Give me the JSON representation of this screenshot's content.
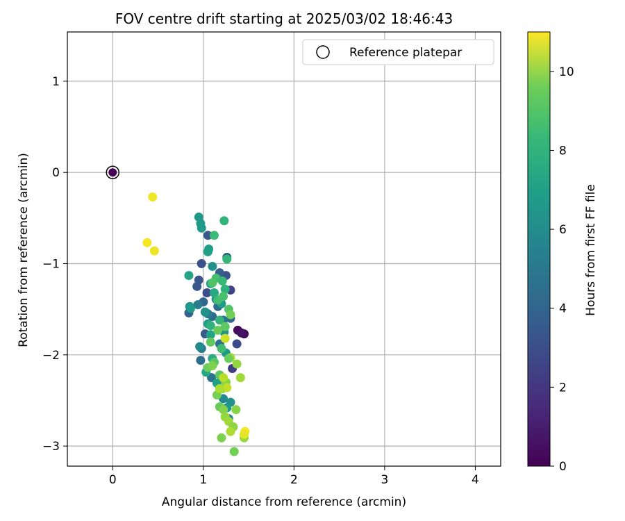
{
  "chart_data": {
    "type": "scatter",
    "title": "FOV centre drift starting at 2025/03/02 18:46:43",
    "xlabel": "Angular distance from reference (arcmin)",
    "ylabel": "Rotation from reference (arcmin)",
    "xlim": [
      -0.5,
      4.28
    ],
    "ylim": [
      -3.22,
      1.54
    ],
    "xticks": [
      0,
      1,
      2,
      3,
      4
    ],
    "yticks": [
      -3,
      -2,
      -1,
      0,
      1
    ],
    "xtick_labels": [
      "0",
      "1",
      "2",
      "3",
      "4"
    ],
    "ytick_labels": [
      "−3",
      "−2",
      "−1",
      "0",
      "1"
    ],
    "grid": true,
    "legend": {
      "position": "top-right",
      "entries": [
        "Reference platepar"
      ]
    },
    "colorbar": {
      "label": "Hours from first FF file",
      "colormap": "viridis",
      "range": [
        0,
        11
      ],
      "ticks": [
        0,
        2,
        4,
        6,
        8,
        10
      ],
      "tick_labels": [
        "0",
        "2",
        "4",
        "6",
        "8",
        "10"
      ]
    },
    "reference_point": {
      "x": 0,
      "y": 0,
      "hours": 0
    },
    "points": [
      {
        "x": 1.38,
        "y": -1.73,
        "h": 0.3
      },
      {
        "x": 1.45,
        "y": -1.77,
        "h": 0.2
      },
      {
        "x": 1.42,
        "y": -1.76,
        "h": 0.5
      },
      {
        "x": 1.32,
        "y": -2.15,
        "h": 2.0
      },
      {
        "x": 1.37,
        "y": -1.88,
        "h": 2.5
      },
      {
        "x": 1.3,
        "y": -1.29,
        "h": 2.2
      },
      {
        "x": 1.25,
        "y": -1.13,
        "h": 2.8
      },
      {
        "x": 1.05,
        "y": -0.69,
        "h": 3.0
      },
      {
        "x": 0.98,
        "y": -1.0,
        "h": 2.7
      },
      {
        "x": 0.93,
        "y": -1.25,
        "h": 3.0
      },
      {
        "x": 0.95,
        "y": -1.18,
        "h": 2.9
      },
      {
        "x": 1.18,
        "y": -1.1,
        "h": 3.3
      },
      {
        "x": 1.04,
        "y": -1.32,
        "h": 2.6
      },
      {
        "x": 1.26,
        "y": -0.93,
        "h": 3.2
      },
      {
        "x": 0.84,
        "y": -1.54,
        "h": 3.4
      },
      {
        "x": 1.0,
        "y": -1.42,
        "h": 3.6
      },
      {
        "x": 1.02,
        "y": -1.77,
        "h": 3.1
      },
      {
        "x": 1.1,
        "y": -1.58,
        "h": 3.8
      },
      {
        "x": 0.97,
        "y": -2.06,
        "h": 4.0
      },
      {
        "x": 1.09,
        "y": -2.25,
        "h": 4.2
      },
      {
        "x": 1.3,
        "y": -1.6,
        "h": 3.7
      },
      {
        "x": 1.22,
        "y": -1.62,
        "h": 4.3
      },
      {
        "x": 1.16,
        "y": -1.47,
        "h": 3.9
      },
      {
        "x": 0.94,
        "y": -1.45,
        "h": 4.5
      },
      {
        "x": 0.98,
        "y": -1.93,
        "h": 4.4
      },
      {
        "x": 1.05,
        "y": -1.55,
        "h": 4.6
      },
      {
        "x": 1.18,
        "y": -1.88,
        "h": 4.1
      },
      {
        "x": 0.95,
        "y": -0.49,
        "h": 5.8
      },
      {
        "x": 0.97,
        "y": -0.56,
        "h": 5.9
      },
      {
        "x": 0.98,
        "y": -0.61,
        "h": 6.0
      },
      {
        "x": 1.06,
        "y": -0.84,
        "h": 6.1
      },
      {
        "x": 1.05,
        "y": -0.87,
        "h": 6.2
      },
      {
        "x": 0.84,
        "y": -1.13,
        "h": 6.4
      },
      {
        "x": 1.1,
        "y": -1.03,
        "h": 5.5
      },
      {
        "x": 1.08,
        "y": -1.22,
        "h": 6.3
      },
      {
        "x": 0.85,
        "y": -1.47,
        "h": 5.7
      },
      {
        "x": 0.86,
        "y": -1.49,
        "h": 6.0
      },
      {
        "x": 1.02,
        "y": -1.53,
        "h": 5.6
      },
      {
        "x": 1.05,
        "y": -1.66,
        "h": 6.1
      },
      {
        "x": 0.96,
        "y": -1.91,
        "h": 5.3
      },
      {
        "x": 1.03,
        "y": -2.19,
        "h": 6.5
      },
      {
        "x": 1.15,
        "y": -2.31,
        "h": 6.2
      },
      {
        "x": 1.14,
        "y": -1.39,
        "h": 5.4
      },
      {
        "x": 1.2,
        "y": -1.44,
        "h": 5.9
      },
      {
        "x": 1.12,
        "y": -1.32,
        "h": 6.6
      },
      {
        "x": 1.23,
        "y": -1.75,
        "h": 5.5
      },
      {
        "x": 1.08,
        "y": -1.78,
        "h": 6.3
      },
      {
        "x": 1.25,
        "y": -1.98,
        "h": 5.8
      },
      {
        "x": 1.22,
        "y": -2.48,
        "h": 5.2
      },
      {
        "x": 1.28,
        "y": -2.7,
        "h": 5.0
      },
      {
        "x": 1.3,
        "y": -2.52,
        "h": 5.6
      },
      {
        "x": 1.26,
        "y": -2.58,
        "h": 6.0
      },
      {
        "x": 1.1,
        "y": -2.04,
        "h": 6.7
      },
      {
        "x": 1.23,
        "y": -0.53,
        "h": 7.2
      },
      {
        "x": 1.12,
        "y": -0.69,
        "h": 7.5
      },
      {
        "x": 1.26,
        "y": -0.95,
        "h": 7.3
      },
      {
        "x": 1.14,
        "y": -1.16,
        "h": 7.7
      },
      {
        "x": 1.21,
        "y": -1.19,
        "h": 7.4
      },
      {
        "x": 1.1,
        "y": -1.21,
        "h": 7.9
      },
      {
        "x": 1.24,
        "y": -1.28,
        "h": 7.1
      },
      {
        "x": 1.16,
        "y": -1.4,
        "h": 7.6
      },
      {
        "x": 1.22,
        "y": -1.36,
        "h": 7.8
      },
      {
        "x": 1.28,
        "y": -1.5,
        "h": 8.0
      },
      {
        "x": 1.18,
        "y": -1.62,
        "h": 7.2
      },
      {
        "x": 1.24,
        "y": -1.69,
        "h": 8.2
      },
      {
        "x": 1.08,
        "y": -1.68,
        "h": 7.0
      },
      {
        "x": 1.16,
        "y": -1.73,
        "h": 8.4
      },
      {
        "x": 1.3,
        "y": -1.56,
        "h": 8.6
      },
      {
        "x": 1.08,
        "y": -1.86,
        "h": 8.3
      },
      {
        "x": 1.2,
        "y": -1.93,
        "h": 7.6
      },
      {
        "x": 1.12,
        "y": -2.08,
        "h": 8.1
      },
      {
        "x": 1.05,
        "y": -2.14,
        "h": 8.5
      },
      {
        "x": 1.1,
        "y": -2.12,
        "h": 8.8
      },
      {
        "x": 1.18,
        "y": -2.22,
        "h": 8.2
      },
      {
        "x": 1.21,
        "y": -2.37,
        "h": 8.9
      },
      {
        "x": 1.25,
        "y": -2.3,
        "h": 9.0
      },
      {
        "x": 1.15,
        "y": -2.44,
        "h": 8.7
      },
      {
        "x": 1.18,
        "y": -2.57,
        "h": 8.4
      },
      {
        "x": 1.22,
        "y": -2.6,
        "h": 8.9
      },
      {
        "x": 1.24,
        "y": -2.68,
        "h": 9.2
      },
      {
        "x": 1.28,
        "y": -2.73,
        "h": 9.4
      },
      {
        "x": 1.33,
        "y": -2.79,
        "h": 9.1
      },
      {
        "x": 1.3,
        "y": -2.84,
        "h": 9.6
      },
      {
        "x": 1.2,
        "y": -2.91,
        "h": 8.8
      },
      {
        "x": 1.45,
        "y": -2.91,
        "h": 9.3
      },
      {
        "x": 1.34,
        "y": -3.06,
        "h": 8.6
      },
      {
        "x": 1.36,
        "y": -2.6,
        "h": 9.0
      },
      {
        "x": 1.3,
        "y": -2.03,
        "h": 9.5
      },
      {
        "x": 1.37,
        "y": -2.1,
        "h": 9.2
      },
      {
        "x": 1.41,
        "y": -2.25,
        "h": 9.4
      },
      {
        "x": 1.28,
        "y": -2.04,
        "h": 8.5
      },
      {
        "x": 1.22,
        "y": -2.25,
        "h": 9.8
      },
      {
        "x": 1.26,
        "y": -2.36,
        "h": 10.0
      },
      {
        "x": 1.24,
        "y": -1.82,
        "h": 10.2
      },
      {
        "x": 1.18,
        "y": -2.37,
        "h": 9.6
      },
      {
        "x": 1.46,
        "y": -2.84,
        "h": 10.9
      },
      {
        "x": 1.45,
        "y": -2.87,
        "h": 10.6
      },
      {
        "x": 0.44,
        "y": -0.27,
        "h": 10.8
      },
      {
        "x": 0.38,
        "y": -0.77,
        "h": 10.9
      },
      {
        "x": 0.46,
        "y": -0.86,
        "h": 10.7
      }
    ]
  }
}
